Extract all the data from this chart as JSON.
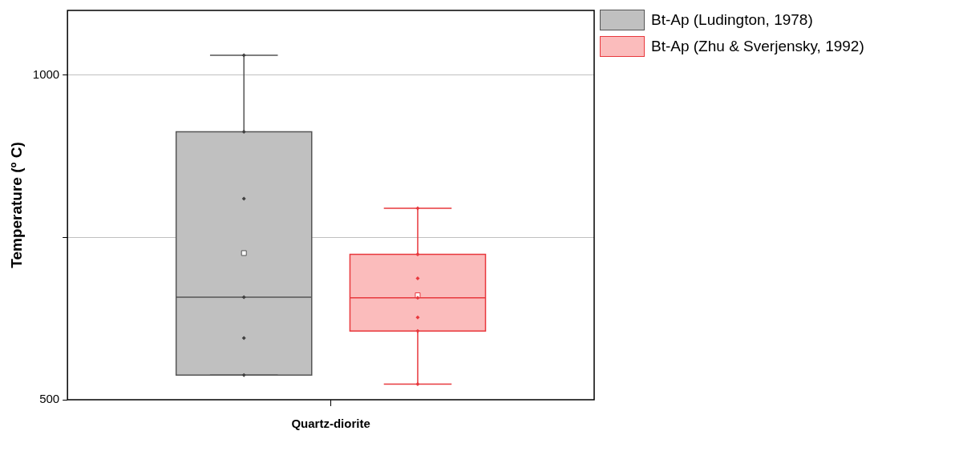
{
  "chart_data": {
    "type": "box",
    "ylabel": "Temperature (º C)",
    "categories": [
      "Quartz-diorite"
    ],
    "ylim": [
      500,
      1100
    ],
    "yticks": [
      500,
      {
        "value": 750,
        "label": null
      },
      1000
    ],
    "grid": "y",
    "legend": "top right",
    "series": [
      {
        "name": "Bt-Ap (Ludington, 1978)",
        "color": "#c0c0c0",
        "boxes": [
          {
            "low": 538,
            "q1": 538,
            "median": 658,
            "q3": 913,
            "high": 1031,
            "mean": 726
          }
        ]
      },
      {
        "name": "Bt-Ap (Zhu & Sverjensky, 1992)",
        "color": "#fbbcbc",
        "boxes": [
          {
            "low": 524,
            "q1": 606,
            "median": 657,
            "q3": 724,
            "high": 795,
            "mean": 661
          }
        ]
      },
      {
        "type": "scatter",
        "color": "#404040",
        "x": [
          "Quartz-diorite",
          "Quartz-diorite",
          "Quartz-diorite",
          "Quartz-diorite",
          "Quartz-diorite",
          "Quartz-diorite"
        ],
        "values": [
          1031,
          913,
          810,
          658,
          595,
          538
        ]
      },
      {
        "type": "scatter",
        "color": "#e8383d",
        "x": [
          "Quartz-diorite",
          "Quartz-diorite",
          "Quartz-diorite",
          "Quartz-diorite",
          "Quartz-diorite",
          "Quartz-diorite",
          "Quartz-diorite"
        ],
        "values": [
          795,
          724,
          687,
          657,
          627,
          606,
          524
        ]
      }
    ]
  }
}
